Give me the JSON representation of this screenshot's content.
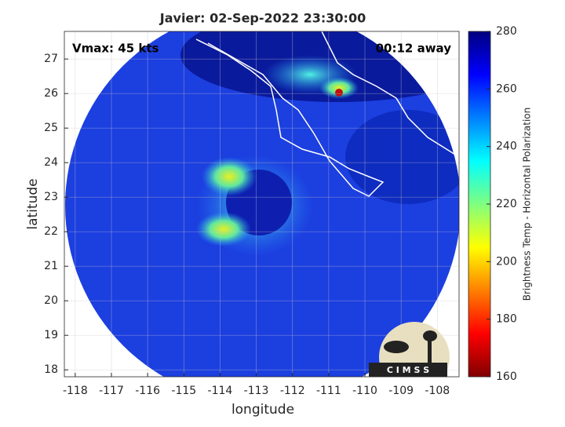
{
  "chart_data": {
    "type": "map",
    "title": "Javier: 02-Sep-2022 23:30:00",
    "annotations": [
      "Vmax: 45 kts",
      "00:12 away"
    ],
    "xlabel": "longitude",
    "ylabel": "latitude",
    "xlim": [
      -118.3,
      -107.4
    ],
    "ylim": [
      17.8,
      27.8
    ],
    "xticks": [
      -118,
      -117,
      -116,
      -115,
      -114,
      -113,
      -112,
      -111,
      -110,
      -109,
      -108
    ],
    "yticks": [
      18,
      19,
      20,
      21,
      22,
      23,
      24,
      25,
      26,
      27
    ],
    "grid": true,
    "colorbar": {
      "label": "Brightness Temp - Horizontal Polarization",
      "lim": [
        160,
        280
      ],
      "ticks": [
        160,
        180,
        200,
        220,
        240,
        260,
        280
      ]
    },
    "logo": "C I M S S"
  }
}
